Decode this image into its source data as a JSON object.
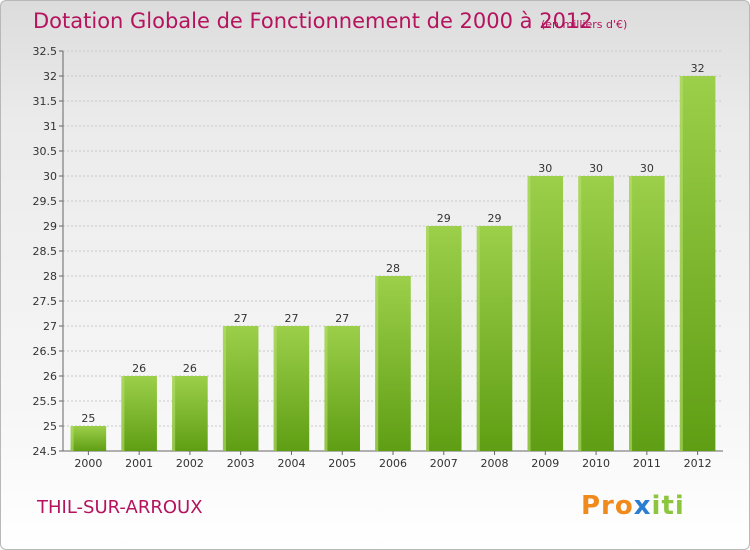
{
  "header": {
    "title": "Dotation Globale de Fonctionnement de 2000 à 2012",
    "unit": "(en milliers d'€)"
  },
  "footer": {
    "commune": "THIL-SUR-ARROUX",
    "logo_text": "Proxiti"
  },
  "colors": {
    "title": "#b5135e",
    "bar_top": "#9ccf4a",
    "bar_bottom": "#5f9e14",
    "grid": "#c8c8c8"
  },
  "chart_data": {
    "type": "bar",
    "title": "Dotation Globale de Fonctionnement de 2000 à 2012",
    "xlabel": "",
    "ylabel": "",
    "ylim": [
      24.5,
      32.5
    ],
    "yticks": [
      "24.5",
      "25",
      "25.5",
      "26",
      "26.5",
      "27",
      "27.5",
      "28",
      "28.5",
      "29",
      "29.5",
      "30",
      "30.5",
      "31",
      "31.5",
      "32",
      "32.5"
    ],
    "categories": [
      "2000",
      "2001",
      "2002",
      "2003",
      "2004",
      "2005",
      "2006",
      "2007",
      "2008",
      "2009",
      "2010",
      "2011",
      "2012"
    ],
    "values": [
      25,
      26,
      26,
      27,
      27,
      27,
      28,
      29,
      29,
      30,
      30,
      30,
      32
    ],
    "grid": true,
    "legend": "none"
  }
}
